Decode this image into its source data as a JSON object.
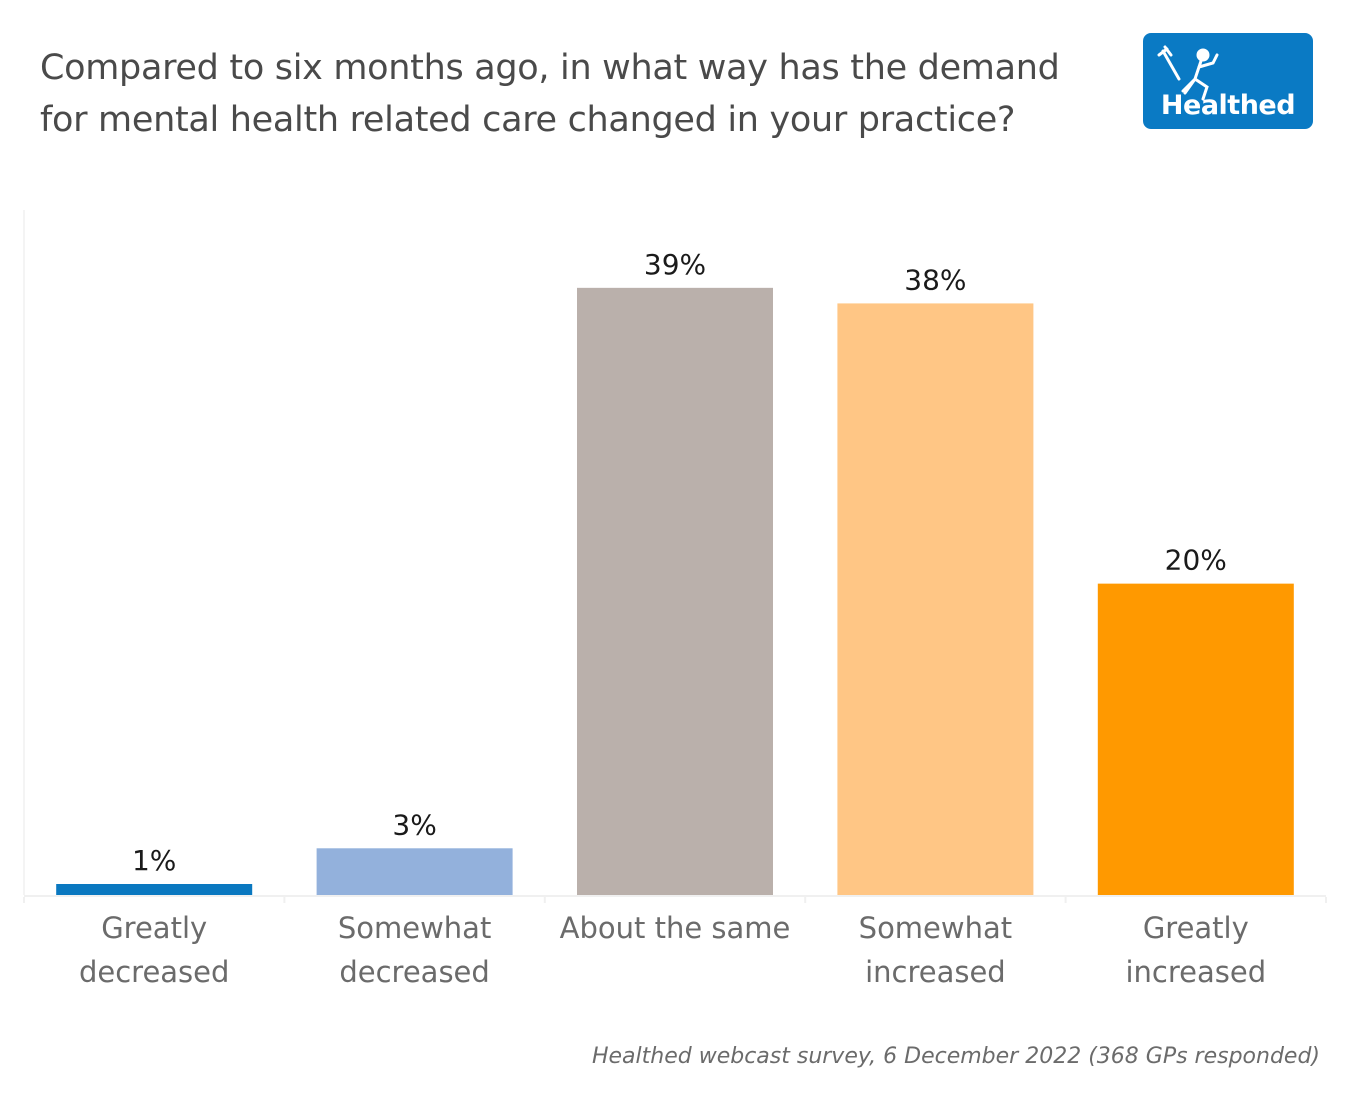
{
  "header": {
    "title_lines": [
      "Compared to six months ago, in what way has the demand",
      "for mental health related care changed in your practice?"
    ],
    "logo_text": "Healthed"
  },
  "chart_data": {
    "type": "bar",
    "title": "Compared to six months ago, in what way has the demand for mental health related care changed in your practice?",
    "categories": [
      "Greatly decreased",
      "Somewhat decreased",
      "About the same",
      "Somewhat increased",
      "Greatly increased"
    ],
    "category_lines": [
      [
        "Greatly",
        "decreased"
      ],
      [
        "Somewhat",
        "decreased"
      ],
      [
        "About the same"
      ],
      [
        "Somewhat",
        "increased"
      ],
      [
        "Greatly",
        "increased"
      ]
    ],
    "values": [
      1,
      3,
      39,
      38,
      20
    ],
    "labels": [
      "1%",
      "3%",
      "39%",
      "38%",
      "20%"
    ],
    "colors": [
      "#0a78c0",
      "#93b1dc",
      "#bab0ab",
      "#ffc685",
      "#ff9900"
    ],
    "xlabel": "",
    "ylabel": "",
    "ylim": [
      0,
      44
    ],
    "grid": false,
    "legend": "none"
  },
  "footer": {
    "source": "Healthed webcast survey, 6 December 2022 (368 GPs responded)"
  }
}
